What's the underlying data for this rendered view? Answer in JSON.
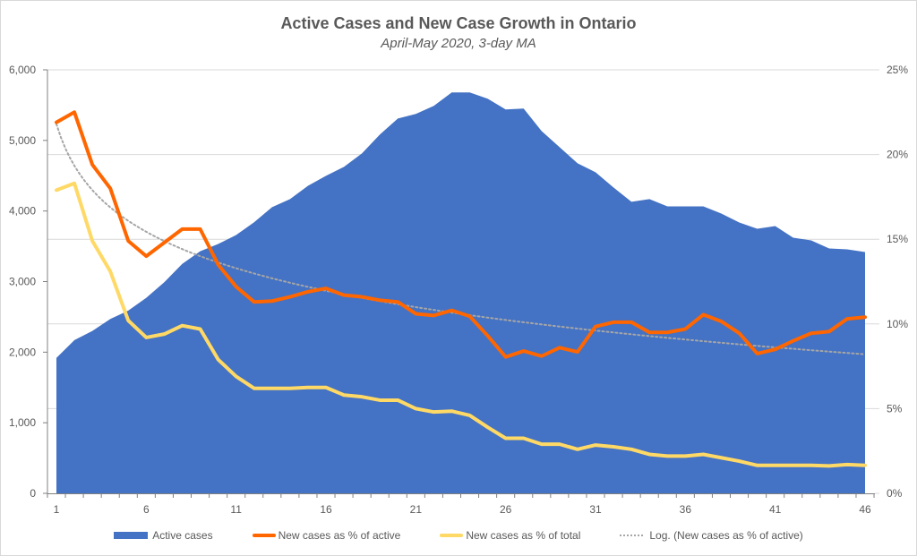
{
  "chart_data": {
    "type": "area+line",
    "title": "Active Cases and New Case Growth in Ontario",
    "subtitle": "April-May 2020, 3-day MA",
    "x": [
      1,
      2,
      3,
      4,
      5,
      6,
      7,
      8,
      9,
      10,
      11,
      12,
      13,
      14,
      15,
      16,
      17,
      18,
      19,
      20,
      21,
      22,
      23,
      24,
      25,
      26,
      27,
      28,
      29,
      30,
      31,
      32,
      33,
      34,
      35,
      36,
      37,
      38,
      39,
      40,
      41,
      42,
      43,
      44,
      45,
      46
    ],
    "x_ticks": [
      1,
      6,
      11,
      16,
      21,
      26,
      31,
      36,
      41,
      46
    ],
    "x_tick_labels": [
      "1",
      "6",
      "11",
      "16",
      "21",
      "26",
      "31",
      "36",
      "41",
      "46"
    ],
    "y_left": {
      "ylim": [
        0,
        6000
      ],
      "ticks": [
        0,
        1000,
        2000,
        3000,
        4000,
        5000,
        6000
      ],
      "tick_labels": [
        "0",
        "1,000",
        "2,000",
        "3,000",
        "4,000",
        "5,000",
        "6,000"
      ]
    },
    "y_right": {
      "ylim": [
        0,
        25
      ],
      "ticks": [
        0,
        5,
        10,
        15,
        20,
        25
      ],
      "tick_labels": [
        "0%",
        "5%",
        "10%",
        "15%",
        "20%",
        "25%"
      ],
      "gridlines": true
    },
    "series": [
      {
        "name": "Active cases",
        "type": "area",
        "axis": "left",
        "color": "#4472c4",
        "values": [
          1919,
          2170,
          2300,
          2470,
          2590,
          2770,
          2990,
          3250,
          3430,
          3532,
          3660,
          3840,
          4054,
          4168,
          4358,
          4498,
          4625,
          4816,
          5083,
          5311,
          5375,
          5490,
          5680,
          5680,
          5591,
          5438,
          5451,
          5133,
          4905,
          4676,
          4549,
          4333,
          4130,
          4168,
          4066,
          4066,
          4066,
          3964,
          3837,
          3748,
          3787,
          3621,
          3583,
          3469,
          3456,
          3418
        ]
      },
      {
        "name": "New cases as % of active",
        "type": "line",
        "axis": "right",
        "color": "#ff6600",
        "values": [
          21.9,
          22.5,
          19.4,
          18.0,
          14.9,
          14.0,
          14.8,
          15.6,
          15.6,
          13.5,
          12.2,
          11.3,
          11.35,
          11.6,
          11.9,
          12.1,
          11.7,
          11.6,
          11.4,
          11.3,
          10.6,
          10.5,
          10.8,
          10.45,
          9.3,
          8.05,
          8.4,
          8.1,
          8.6,
          8.35,
          9.85,
          10.1,
          10.1,
          9.5,
          9.5,
          9.7,
          10.55,
          10.15,
          9.45,
          8.25,
          8.5,
          9.0,
          9.45,
          9.55,
          10.3,
          10.4
        ]
      },
      {
        "name": "New cases as % of total",
        "type": "line",
        "axis": "right",
        "color": "#ffd966",
        "values": [
          17.9,
          18.3,
          14.9,
          13.1,
          10.2,
          9.2,
          9.4,
          9.9,
          9.7,
          7.9,
          6.9,
          6.2,
          6.2,
          6.2,
          6.25,
          6.25,
          5.8,
          5.7,
          5.5,
          5.5,
          5.0,
          4.8,
          4.85,
          4.6,
          3.9,
          3.25,
          3.25,
          2.9,
          2.9,
          2.6,
          2.85,
          2.75,
          2.6,
          2.3,
          2.2,
          2.2,
          2.3,
          2.1,
          1.9,
          1.65,
          1.65,
          1.65,
          1.65,
          1.62,
          1.7,
          1.65
        ]
      },
      {
        "name": "Log. (New cases as % of active)",
        "type": "trendline-log",
        "axis": "right",
        "color": "#a6a6a6",
        "intercept": 21.8,
        "slope_ln": -3.55
      }
    ],
    "legend": {
      "position": "bottom",
      "entries": [
        "Active cases",
        "New cases as % of active",
        "New cases as % of total",
        "Log. (New cases as % of active)"
      ]
    }
  }
}
